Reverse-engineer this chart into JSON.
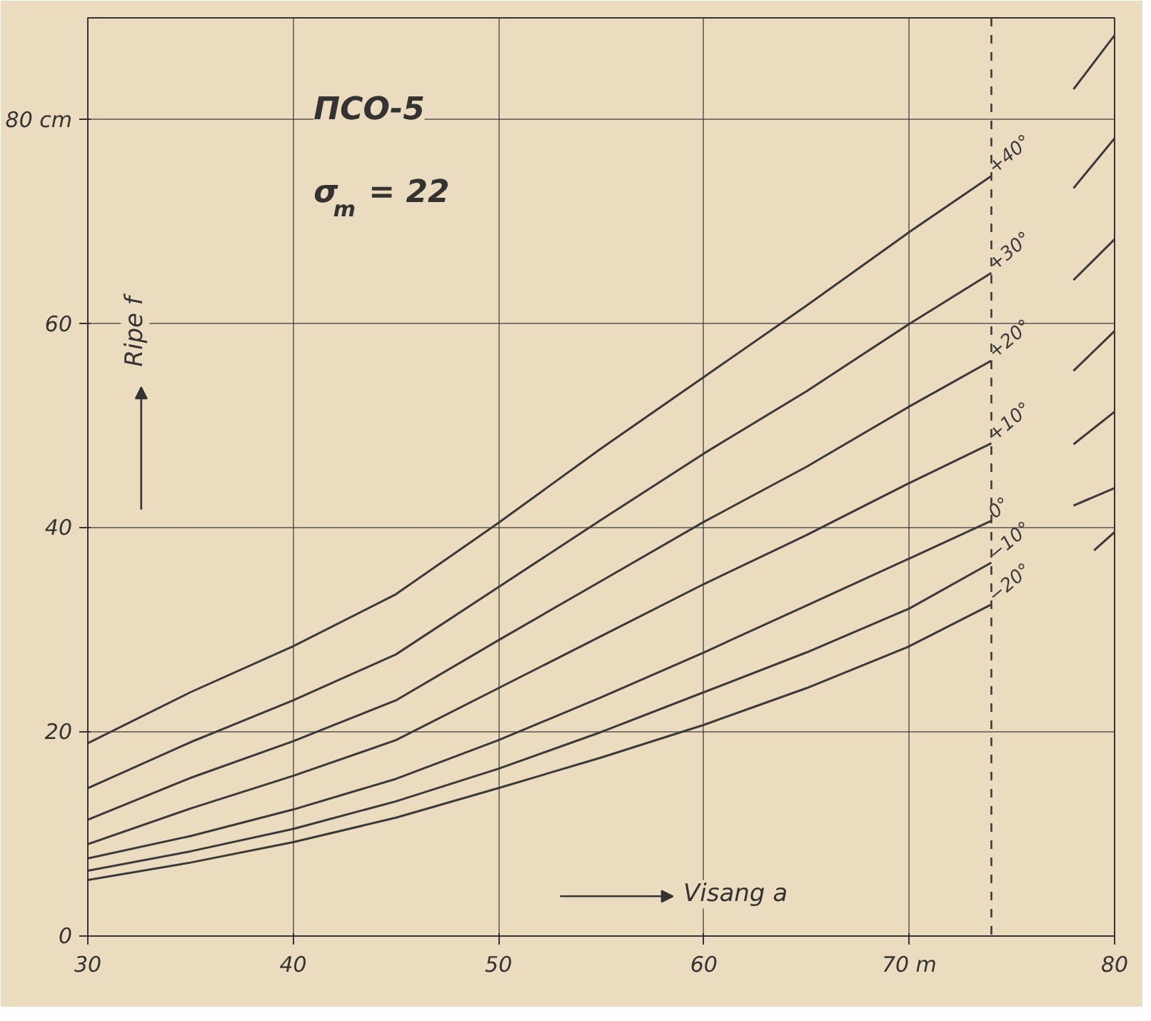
{
  "chart_data": {
    "type": "line",
    "title": "ПСО-5",
    "subtitle": "σ$_{m}$ = 22",
    "xlabel": "Visang a",
    "ylabel": "Ripe f",
    "xlim": [
      30,
      80
    ],
    "ylim": [
      0,
      90
    ],
    "xticks": [
      30,
      40,
      50,
      60,
      {
        "value": 70,
        "label": "70 m"
      },
      80
    ],
    "yticks": [
      0,
      20,
      40,
      60,
      {
        "value": 80,
        "label": "80 cm"
      }
    ],
    "grid": true,
    "marker": "none",
    "line_style": "solid",
    "ref_lines": [
      {
        "axis": "x",
        "value": 74,
        "line_style": "dashed",
        "color": "#3a3a3a"
      }
    ],
    "series": [
      {
        "name": "+40°",
        "color": "#3a3a3a",
        "x": [
          30,
          35,
          40,
          45,
          50,
          55,
          60,
          65,
          70,
          74,
          76,
          78,
          80
        ],
        "values": [
          18.9,
          23.9,
          28.4,
          33.5,
          40.5,
          47.8,
          54.8,
          61.8,
          69.0,
          74.5,
          null,
          83.0,
          88.3
        ]
      },
      {
        "name": "+30°",
        "color": "#3a3a3a",
        "x": [
          30,
          35,
          40,
          45,
          50,
          55,
          60,
          65,
          70,
          74,
          76,
          78,
          80
        ],
        "values": [
          14.5,
          19.0,
          23.1,
          27.6,
          34.2,
          40.8,
          47.3,
          53.4,
          60.0,
          65.0,
          null,
          73.3,
          78.2
        ]
      },
      {
        "name": "+20°",
        "color": "#3a3a3a",
        "x": [
          30,
          35,
          40,
          45,
          50,
          55,
          60,
          65,
          70,
          74,
          76,
          78,
          80
        ],
        "values": [
          11.4,
          15.5,
          19.1,
          23.1,
          29.0,
          34.8,
          40.6,
          46.0,
          51.9,
          56.4,
          null,
          64.3,
          68.3
        ]
      },
      {
        "name": "+10°",
        "color": "#3a3a3a",
        "x": [
          30,
          35,
          40,
          45,
          50,
          55,
          60,
          65,
          70,
          74,
          76,
          78,
          80
        ],
        "values": [
          9.0,
          12.5,
          15.7,
          19.2,
          24.3,
          29.4,
          34.5,
          39.3,
          44.4,
          48.3,
          null,
          55.4,
          59.3
        ]
      },
      {
        "name": "0°",
        "color": "#3a3a3a",
        "x": [
          30,
          35,
          40,
          45,
          50,
          55,
          60,
          65,
          70,
          74,
          76,
          78,
          80
        ],
        "values": [
          7.6,
          9.8,
          12.4,
          15.4,
          19.2,
          23.4,
          27.8,
          32.4,
          37.0,
          40.7,
          null,
          48.2,
          51.4
        ]
      },
      {
        "name": "−10°",
        "color": "#3a3a3a",
        "x": [
          30,
          35,
          40,
          45,
          50,
          55,
          60,
          65,
          70,
          74,
          76,
          78,
          80
        ],
        "values": [
          6.4,
          8.3,
          10.5,
          13.2,
          16.4,
          20.0,
          23.9,
          27.8,
          32.1,
          36.6,
          null,
          42.2,
          43.9
        ]
      },
      {
        "name": "−20°",
        "color": "#3a3a3a",
        "x": [
          30,
          35,
          40,
          45,
          50,
          55,
          60,
          65,
          70,
          74,
          76,
          79,
          80
        ],
        "values": [
          5.5,
          7.2,
          9.2,
          11.6,
          14.5,
          17.5,
          20.7,
          24.3,
          28.4,
          32.5,
          null,
          37.8,
          39.6
        ]
      }
    ]
  }
}
